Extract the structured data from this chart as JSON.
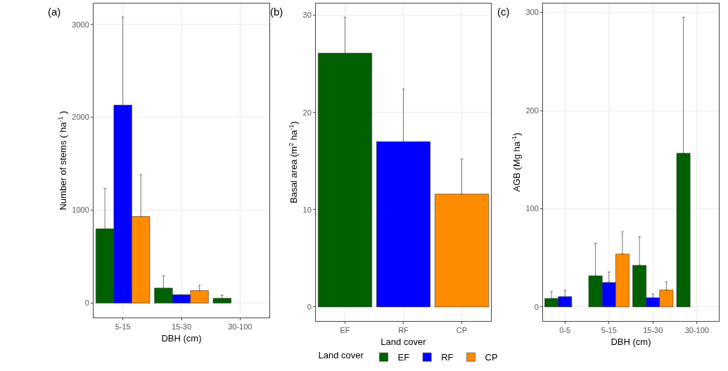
{
  "chart_data": [
    {
      "type": "bar",
      "title": "(a)",
      "xlabel": "DBH (cm)",
      "ylabel": "Number of stems ( ha$^{-1}$ )",
      "legend_title": "Land cover",
      "legend": "bottom",
      "grid": true,
      "categories": [
        "5-15",
        "15-30",
        "30-100"
      ],
      "series": [
        {
          "name": "EF",
          "color": "#016001",
          "values": [
            800,
            162,
            52
          ],
          "errors": [
            [
              800,
              1235
            ],
            [
              162,
              294
            ],
            [
              52,
              85
            ]
          ]
        },
        {
          "name": "RF",
          "color": "#0000ff",
          "values": [
            2131,
            90,
            null
          ],
          "errors": [
            [
              2131,
              3080
            ],
            null,
            null
          ]
        },
        {
          "name": "CP",
          "color": "#ff8c00",
          "values": [
            933,
            135,
            null
          ],
          "errors": [
            [
              933,
              1383
            ],
            [
              135,
              192
            ],
            null
          ]
        }
      ],
      "ylim": [
        -155,
        3225
      ],
      "yticks": [
        0,
        1000,
        2000,
        3000
      ]
    },
    {
      "type": "bar",
      "title": "(b)",
      "xlabel": "Land cover",
      "ylabel": "Basal area (m$^{2}$ ha$^{-1}$)",
      "grid": true,
      "categories": [
        "EF",
        "RF",
        "CP"
      ],
      "values": [
        26.1,
        17.0,
        11.6
      ],
      "colors": [
        "#016001",
        "#0000ff",
        "#ff8c00"
      ],
      "errors": [
        [
          26.1,
          29.8
        ],
        [
          17.0,
          22.4
        ],
        [
          11.6,
          15.2
        ]
      ],
      "ylim": [
        -1.45,
        31.2
      ],
      "yticks": [
        0,
        10,
        20,
        30
      ]
    },
    {
      "type": "bar",
      "title": "(c)",
      "xlabel": "DBH (cm)",
      "ylabel": "AGB (Mg ha$^{-1}$)",
      "grid": true,
      "categories": [
        "0-5",
        "5-15",
        "15-30",
        "30-100"
      ],
      "series": [
        {
          "color": "#016001",
          "values": [
            8.6,
            31.6,
            42.3,
            156.5
          ],
          "errors": [
            [
              8.6,
              15.6
            ],
            [
              31.6,
              64.8
            ],
            [
              42.3,
              71.3
            ],
            [
              156.5,
              295
            ]
          ]
        },
        {
          "color": "#0000ff",
          "values": [
            10.5,
            24.9,
            9.3,
            null
          ],
          "errors": [
            [
              10.5,
              17
            ],
            [
              24.9,
              35.6
            ],
            [
              9.3,
              12.9
            ],
            null
          ]
        },
        {
          "color": "#ff8c00",
          "values": [
            null,
            53.8,
            17.2,
            null
          ],
          "errors": [
            null,
            [
              53.8,
              76.6
            ],
            [
              17.2,
              25.6
            ],
            null
          ]
        }
      ],
      "ylim": [
        -14.4,
        309
      ],
      "yticks": [
        0,
        100,
        200,
        300
      ]
    }
  ]
}
